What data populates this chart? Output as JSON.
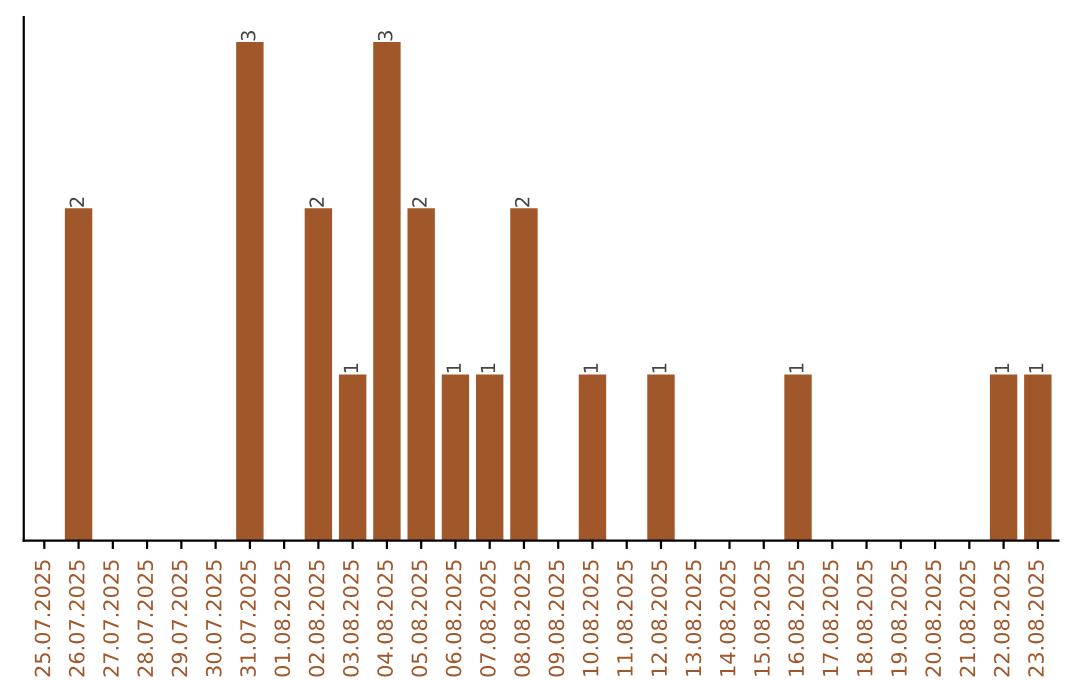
{
  "chart_data": {
    "type": "bar",
    "categories": [
      "25.07.2025",
      "26.07.2025",
      "27.07.2025",
      "28.07.2025",
      "29.07.2025",
      "30.07.2025",
      "31.07.2025",
      "01.08.2025",
      "02.08.2025",
      "03.08.2025",
      "04.08.2025",
      "05.08.2025",
      "06.08.2025",
      "07.08.2025",
      "08.08.2025",
      "09.08.2025",
      "10.08.2025",
      "11.08.2025",
      "12.08.2025",
      "13.08.2025",
      "14.08.2025",
      "15.08.2025",
      "16.08.2025",
      "17.08.2025",
      "18.08.2025",
      "19.08.2025",
      "20.08.2025",
      "21.08.2025",
      "22.08.2025",
      "23.08.2025"
    ],
    "values": [
      0,
      2,
      0,
      0,
      0,
      0,
      3,
      0,
      2,
      1,
      3,
      2,
      1,
      1,
      2,
      0,
      1,
      0,
      1,
      0,
      0,
      0,
      1,
      0,
      0,
      0,
      0,
      0,
      1,
      1
    ],
    "value_labels": [
      null,
      "2",
      null,
      null,
      null,
      null,
      "3",
      null,
      "2",
      "1",
      "3",
      "2",
      "1",
      "1",
      "2",
      null,
      "1",
      null,
      "1",
      null,
      null,
      null,
      "1",
      null,
      null,
      null,
      null,
      null,
      "1",
      "1"
    ],
    "color": "#a0572a",
    "tick_labels": "x",
    "grid": false,
    "legend": false
  }
}
